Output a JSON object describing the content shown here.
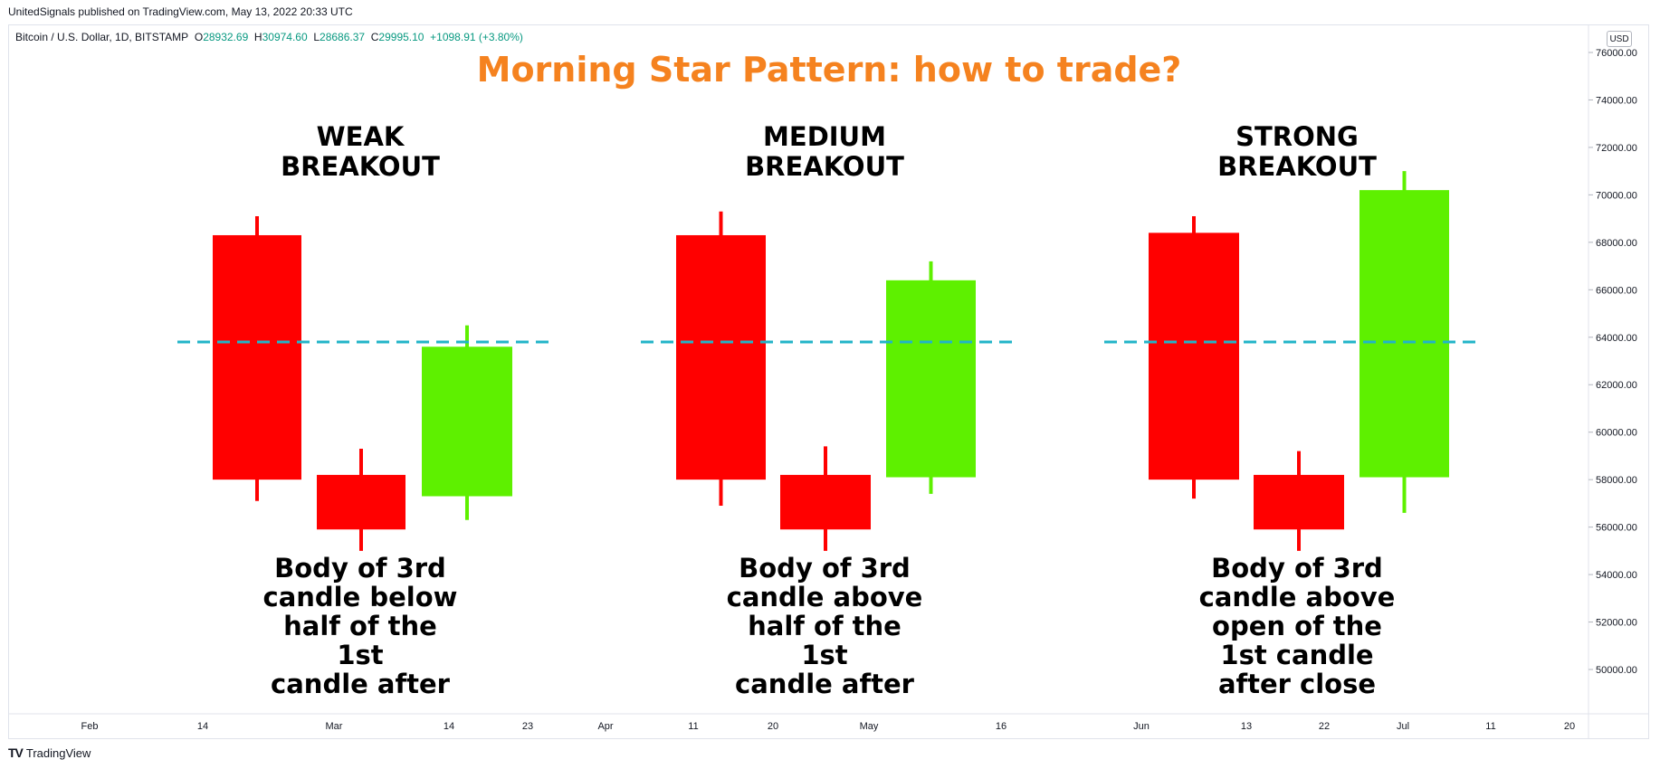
{
  "publish_line": "UnitedSignals published on TradingView.com, May 13, 2022 20:33 UTC",
  "symbol": {
    "name": "Bitcoin / U.S. Dollar, 1D, BITSTAMP",
    "open_label": "O",
    "open": "28932.69",
    "high_label": "H",
    "high": "30974.60",
    "low_label": "L",
    "low": "28686.37",
    "close_label": "C",
    "close": "29995.10",
    "change": "+1098.91 (+3.80%)"
  },
  "currency": "USD",
  "branding": {
    "logo_text": "TradingView",
    "logo_mark": "TV"
  },
  "colors": {
    "bearish": "#ff0000",
    "bullish": "#5ef000",
    "midline": "#22b4c8",
    "title": "#f5821f"
  },
  "chart_data": {
    "type": "candlestick",
    "title": "Morning Star Pattern: how to trade?",
    "y_axis": {
      "position": "right",
      "ylim": [
        48000,
        77000
      ],
      "ticks": [
        76000,
        74000,
        72000,
        70000,
        68000,
        66000,
        64000,
        62000,
        60000,
        58000,
        56000,
        54000,
        52000,
        50000
      ],
      "tick_labels": [
        "76000.00",
        "74000.00",
        "72000.00",
        "70000.00",
        "68000.00",
        "66000.00",
        "64000.00",
        "62000.00",
        "60000.00",
        "58000.00",
        "56000.00",
        "54000.00",
        "52000.00",
        "50000.00"
      ]
    },
    "x_axis": {
      "tick_labels": [
        "Feb",
        "14",
        "Mar",
        "14",
        "23",
        "Apr",
        "11",
        "20",
        "May",
        "16",
        "Jun",
        "13",
        "22",
        "Jul",
        "11",
        "20"
      ]
    },
    "grid": false,
    "groups": [
      {
        "heading": [
          "WEAK",
          "BREAKOUT"
        ],
        "caption": [
          "Body of 3rd",
          "candle below",
          "half of the",
          "1st",
          "candle after"
        ],
        "midline": 63800,
        "candles": [
          {
            "open": 68300,
            "high": 69100,
            "low": 57100,
            "close": 58000
          },
          {
            "open": 58200,
            "high": 59300,
            "low": 55000,
            "close": 55900
          },
          {
            "open": 57300,
            "high": 64500,
            "low": 56300,
            "close": 63600
          }
        ]
      },
      {
        "heading": [
          "MEDIUM",
          "BREAKOUT"
        ],
        "caption": [
          "Body of 3rd",
          "candle above",
          "half of the",
          "1st",
          "candle after"
        ],
        "midline": 63800,
        "candles": [
          {
            "open": 68300,
            "high": 69300,
            "low": 56900,
            "close": 58000
          },
          {
            "open": 58200,
            "high": 59400,
            "low": 55000,
            "close": 55900
          },
          {
            "open": 58100,
            "high": 67200,
            "low": 57400,
            "close": 66400
          }
        ]
      },
      {
        "heading": [
          "STRONG",
          "BREAKOUT"
        ],
        "caption": [
          "Body of 3rd",
          "candle above",
          "open of the",
          "1st candle",
          "after close"
        ],
        "midline": 63800,
        "candles": [
          {
            "open": 68400,
            "high": 69100,
            "low": 57200,
            "close": 58000
          },
          {
            "open": 58200,
            "high": 59200,
            "low": 55000,
            "close": 55900
          },
          {
            "open": 58100,
            "high": 71000,
            "low": 56600,
            "close": 70200
          }
        ]
      }
    ]
  }
}
